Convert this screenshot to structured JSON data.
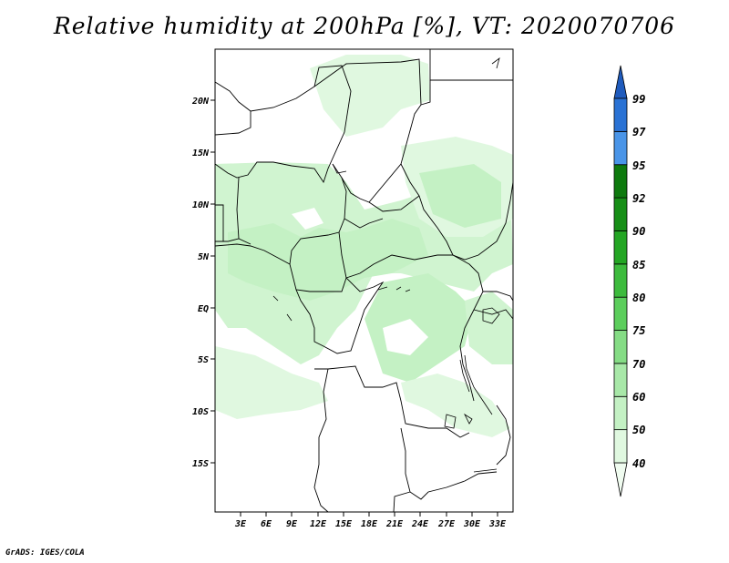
{
  "title": "Relative humidity at 200hPa [%], VT: 2020070706",
  "credit": "GrADS: IGES/COLA",
  "map": {
    "lat_labels": [
      "20N",
      "15N",
      "10N",
      "5N",
      "EQ",
      "5S",
      "10S",
      "15S"
    ],
    "lon_labels": [
      "3E",
      "6E",
      "9E",
      "12E",
      "15E",
      "18E",
      "21E",
      "24E",
      "27E",
      "30E",
      "33E"
    ]
  },
  "colorbar": {
    "levels": [
      "40",
      "50",
      "60",
      "70",
      "75",
      "80",
      "85",
      "90",
      "92",
      "95",
      "97",
      "99"
    ],
    "colors": [
      "#f0fcf0",
      "#e0f8e0",
      "#c4f1c4",
      "#a8e8a8",
      "#85dc85",
      "#5cce5c",
      "#3dbb3d",
      "#24a624",
      "#178f17",
      "#0e7a0e",
      "#4a95e8",
      "#2a72d4",
      "#1f5bbd"
    ]
  }
}
